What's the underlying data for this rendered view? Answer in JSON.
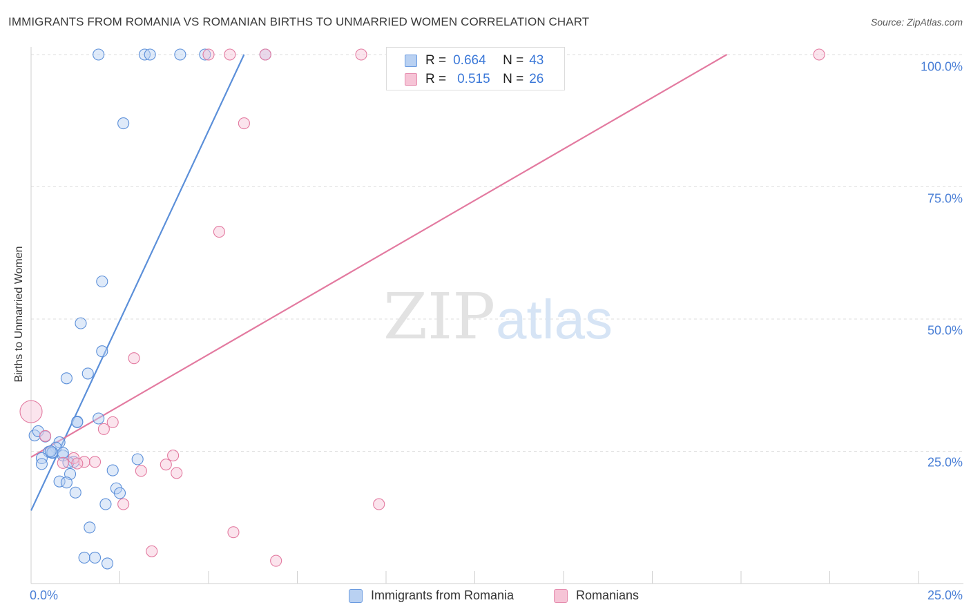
{
  "header": {
    "title": "IMMIGRANTS FROM ROMANIA VS ROMANIAN BIRTHS TO UNMARRIED WOMEN CORRELATION CHART",
    "source": "Source: ZipAtlas.com"
  },
  "watermark": {
    "zip": "ZIP",
    "atlas": "atlas"
  },
  "legend": {
    "r_label": "R =",
    "n_label": "N =",
    "entries": [
      {
        "r": "0.664",
        "n": "43"
      },
      {
        "r": "0.515",
        "n": "26"
      }
    ]
  },
  "chart_data": {
    "type": "scatter",
    "title": "IMMIGRANTS FROM ROMANIA VS ROMANIAN BIRTHS TO UNMARRIED WOMEN CORRELATION CHART",
    "xlabel": "",
    "ylabel": "Births to Unmarried Women",
    "xlim": [
      0,
      25
    ],
    "ylim": [
      0,
      100
    ],
    "x_tick_labels": [
      "0.0%",
      "25.0%"
    ],
    "y_tick_labels": [
      "100.0%",
      "75.0%",
      "50.0%",
      "25.0%"
    ],
    "y_tick_values": [
      100,
      75,
      50,
      25
    ],
    "grid": true,
    "series": [
      {
        "name": "Immigrants from Romania",
        "color": "#5b8fd9",
        "fill": "#b9d1f2",
        "trend": {
          "x": [
            0,
            6.0
          ],
          "y": [
            13.8,
            100
          ]
        },
        "points": [
          [
            1.9,
            100
          ],
          [
            3.2,
            100
          ],
          [
            3.35,
            100
          ],
          [
            4.2,
            100
          ],
          [
            4.9,
            100
          ],
          [
            6.6,
            100
          ],
          [
            2.6,
            87
          ],
          [
            2.0,
            57.1
          ],
          [
            1.4,
            49.2
          ],
          [
            2.0,
            43.9
          ],
          [
            1.6,
            39.7
          ],
          [
            1.0,
            38.8
          ],
          [
            1.3,
            30.6
          ],
          [
            1.9,
            31.2
          ],
          [
            0.1,
            28
          ],
          [
            0.2,
            28.8
          ],
          [
            0.4,
            27.8
          ],
          [
            0.8,
            26.7
          ],
          [
            0.7,
            25.7
          ],
          [
            0.5,
            24.9
          ],
          [
            0.6,
            24.7
          ],
          [
            0.9,
            24.2
          ],
          [
            0.3,
            23.7
          ],
          [
            0.3,
            22.6
          ],
          [
            1.2,
            23
          ],
          [
            3.0,
            23.5
          ],
          [
            1.1,
            20.7
          ],
          [
            2.3,
            21.4
          ],
          [
            0.8,
            19.3
          ],
          [
            1.0,
            19.1
          ],
          [
            1.25,
            17.2
          ],
          [
            2.4,
            18
          ],
          [
            2.5,
            17.1
          ],
          [
            2.1,
            15
          ],
          [
            1.65,
            10.6
          ],
          [
            1.5,
            4.9
          ],
          [
            1.8,
            4.9
          ],
          [
            2.15,
            3.8
          ],
          [
            0.6,
            24.8
          ],
          [
            0.9,
            24.7
          ],
          [
            1.05,
            22.9
          ],
          [
            0.55,
            25
          ],
          [
            1.3,
            30.5
          ]
        ]
      },
      {
        "name": "Romanians",
        "color": "#e37aa0",
        "fill": "#f6c4d6",
        "trend": {
          "x": [
            0,
            19.6
          ],
          "y": [
            23.9,
            100
          ]
        },
        "points": [
          [
            5.0,
            100
          ],
          [
            5.6,
            100
          ],
          [
            6.6,
            100
          ],
          [
            9.3,
            100
          ],
          [
            22.2,
            100
          ],
          [
            6.0,
            87
          ],
          [
            5.3,
            66.5
          ],
          [
            2.9,
            42.6
          ],
          [
            0.0,
            32.5
          ],
          [
            2.3,
            30.5
          ],
          [
            2.05,
            29.2
          ],
          [
            0.4,
            27.9
          ],
          [
            1.2,
            23.7
          ],
          [
            1.5,
            23
          ],
          [
            1.8,
            23
          ],
          [
            1.3,
            22.7
          ],
          [
            4.0,
            24.2
          ],
          [
            3.8,
            22.5
          ],
          [
            3.1,
            21.3
          ],
          [
            4.1,
            20.9
          ],
          [
            2.6,
            15
          ],
          [
            9.8,
            15
          ],
          [
            5.7,
            9.7
          ],
          [
            3.4,
            6.1
          ],
          [
            6.9,
            4.3
          ],
          [
            0.9,
            22.8
          ]
        ],
        "sizes_note": "point at x=0 is a larger circle"
      }
    ]
  },
  "bottom_legend": [
    {
      "label": "Immigrants from Romania"
    },
    {
      "label": "Romanians"
    }
  ]
}
